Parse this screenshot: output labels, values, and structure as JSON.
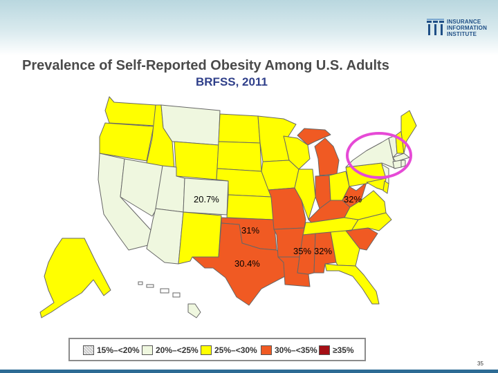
{
  "header": {
    "logo": {
      "lines": [
        "INSURANCE",
        "INFORMATION",
        "INSTITUTE"
      ]
    }
  },
  "title": "Prevalence of Self-Reported Obesity Among U.S. Adults",
  "subtitle": "BRFSS, 2011",
  "colors": {
    "c15_20": "#d9d9d9",
    "c20_25": "#eff7df",
    "c25_30": "#ffff00",
    "c30_35": "#f05a23",
    "c35": "#a50f15",
    "highlight": "#e64ad6",
    "outline": "#666666"
  },
  "map_labels": {
    "colorado": "20.7%",
    "west_virginia": "32%",
    "oklahoma": "31%",
    "mississippi": "35%",
    "alabama": "32%",
    "texas": "30.4%"
  },
  "legend": [
    {
      "label": "15%–<20%",
      "color": "#d9d9d9"
    },
    {
      "label": "20%–<25%",
      "color": "#eff7df"
    },
    {
      "label": "25%–<30%",
      "color": "#ffff00"
    },
    {
      "label": "30%–<35%",
      "color": "#f05a23"
    },
    {
      "label": "≥35%",
      "color": "#a50f15"
    }
  ],
  "page_number": "35"
}
